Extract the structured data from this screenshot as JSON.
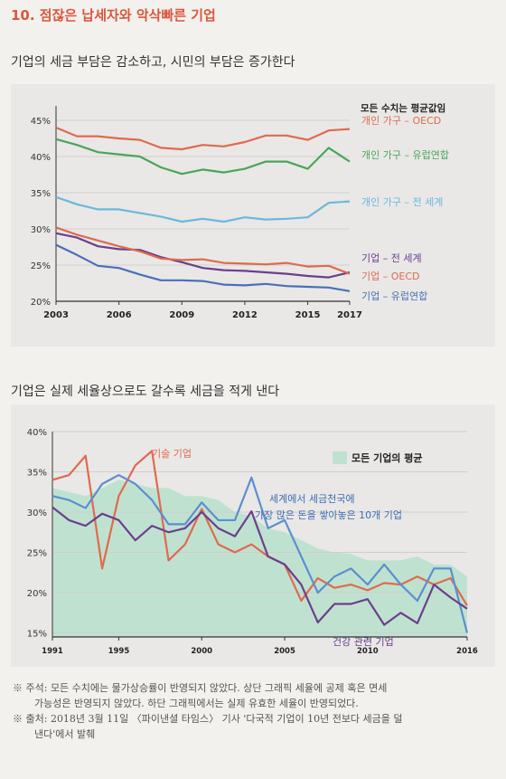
{
  "header": {
    "section_title": "10. 점잖은 납세자와 악삭빠른 기업"
  },
  "chart1": {
    "caption": "기업의 세금 부담은 감소하고, 시민의 부담은 증가한다",
    "note": "모든 수치는 평균값임"
  },
  "chart2": {
    "caption": "기업은 실제 세율상으로도 갈수록 세금을 적게 낸다",
    "legend_label": "모든 기업의 평균",
    "label_tech": "기술 기업",
    "label_cash": "세계에서 세금천국에",
    "label_cash2": "가장 많은 돈을 쌓아놓은 10개 기업",
    "label_health": "건강 관련 기업"
  },
  "notes": {
    "line1": "※ 주석: 모든 수치에는 물가상승률이 반영되지 않았다. 상단 그래픽 세율에 공제 혹은 면세",
    "line2": "가능성은 반영되지 않았다. 하단 그래픽에서는 실제 유효한 세율이 반영되었다.",
    "line3": "※ 출처: 2018년 3월 11일 〈파이낸셜 타임스〉 기사 '다국적 기업이 10년 전보다 세금을 덜",
    "line4": "낸다'에서 발췌"
  },
  "colors": {
    "red": "#e06a4e",
    "green": "#4aa55a",
    "light_blue": "#6bb8dc",
    "blue": "#4a6fb8",
    "purple": "#6b3f8c",
    "mint": "#bfe2d0",
    "accent": "#d9573b"
  },
  "chart_data": [
    {
      "type": "line",
      "title": "",
      "xlabel": "",
      "ylabel": "",
      "x": [
        2003,
        2004,
        2005,
        2006,
        2007,
        2008,
        2009,
        2010,
        2011,
        2012,
        2013,
        2014,
        2015,
        2016,
        2017
      ],
      "x_ticks": [
        2003,
        2006,
        2009,
        2012,
        2015,
        2017
      ],
      "y_ticks": [
        "20%",
        "25%",
        "30%",
        "35%",
        "40%",
        "45%"
      ],
      "ylim": [
        20,
        46
      ],
      "grid": true,
      "series": [
        {
          "name": "개인 가구 – OECD",
          "color": "#e06a4e",
          "values": [
            44.0,
            42.8,
            42.8,
            42.5,
            42.3,
            41.2,
            41.0,
            41.6,
            41.4,
            42.0,
            42.9,
            42.9,
            42.3,
            43.6,
            43.8
          ]
        },
        {
          "name": "개인 가구 – 유럽연합",
          "color": "#4aa55a",
          "values": [
            42.4,
            41.6,
            40.6,
            40.3,
            40.0,
            38.5,
            37.6,
            38.2,
            37.8,
            38.3,
            39.3,
            39.3,
            38.3,
            41.2,
            39.3
          ]
        },
        {
          "name": "개인 가구 – 전 세계",
          "color": "#6bb8dc",
          "values": [
            34.4,
            33.4,
            32.7,
            32.7,
            32.2,
            31.7,
            31.0,
            31.4,
            31.0,
            31.6,
            31.3,
            31.4,
            31.6,
            33.6,
            33.8
          ]
        },
        {
          "name": "기업 – 전 세계",
          "color": "#6b3f8c",
          "values": [
            29.4,
            28.8,
            27.6,
            27.2,
            27.1,
            26.1,
            25.4,
            24.6,
            24.3,
            24.2,
            24.0,
            23.8,
            23.5,
            23.3,
            24.0
          ]
        },
        {
          "name": "기업 – OECD",
          "color": "#e06a4e",
          "values": [
            30.2,
            29.2,
            28.4,
            27.6,
            26.9,
            25.9,
            25.7,
            25.8,
            25.3,
            25.2,
            25.1,
            25.3,
            24.8,
            24.9,
            23.8
          ]
        },
        {
          "name": "기업 – 유럽연합",
          "color": "#4a6fb8",
          "values": [
            27.8,
            26.4,
            24.9,
            24.6,
            23.7,
            22.9,
            22.9,
            22.8,
            22.3,
            22.2,
            22.4,
            22.1,
            22.0,
            21.9,
            21.4
          ]
        }
      ]
    },
    {
      "type": "line",
      "title": "",
      "xlabel": "",
      "ylabel": "",
      "x": [
        1991,
        1992,
        1993,
        1994,
        1995,
        1996,
        1997,
        1998,
        1999,
        2000,
        2001,
        2002,
        2003,
        2004,
        2005,
        2006,
        2007,
        2008,
        2009,
        2010,
        2011,
        2012,
        2013,
        2014,
        2015,
        2016
      ],
      "x_ticks": [
        1991,
        1995,
        2000,
        2005,
        2010,
        2016
      ],
      "y_ticks": [
        "15%",
        "20%",
        "25%",
        "30%",
        "35%",
        "40%"
      ],
      "ylim": [
        14.5,
        40
      ],
      "grid": true,
      "area": {
        "name": "모든 기업의 평균",
        "color": "#bfe2d0",
        "values": [
          33.0,
          32.5,
          32.0,
          33.0,
          34.0,
          33.5,
          33.0,
          33.0,
          32.0,
          32.0,
          31.5,
          30.0,
          29.5,
          28.0,
          27.5,
          26.5,
          25.5,
          25.0,
          24.8,
          24.0,
          24.0,
          24.0,
          24.5,
          23.5,
          23.5,
          22.0
        ]
      },
      "series": [
        {
          "name": "기술 기업",
          "color": "#e06a4e",
          "values": [
            34.0,
            34.6,
            37.0,
            23.0,
            32.0,
            35.8,
            37.6,
            24.0,
            26.0,
            30.4,
            26.0,
            25.0,
            26.0,
            24.5,
            23.5,
            19.0,
            21.8,
            20.6,
            21.0,
            20.3,
            21.2,
            21.0,
            22.0,
            21.0,
            21.8,
            18.4
          ]
        },
        {
          "name": "세계에서 세금천국에 가장 많은 돈을 쌓아놓은 10개 기업",
          "color": "#5b8fd0",
          "values": [
            32.0,
            31.5,
            30.5,
            33.5,
            34.6,
            33.5,
            31.5,
            28.5,
            28.5,
            31.2,
            29.0,
            29.0,
            34.3,
            28.0,
            29.0,
            24.5,
            20.0,
            22.0,
            23.0,
            21.0,
            23.5,
            21.0,
            19.0,
            23.0,
            23.0,
            15.0
          ]
        },
        {
          "name": "건강 관련 기업",
          "color": "#6b3f8c",
          "values": [
            30.6,
            29.0,
            28.3,
            29.8,
            29.0,
            26.5,
            28.3,
            27.5,
            28.0,
            30.0,
            28.0,
            27.0,
            30.1,
            24.5,
            23.5,
            21.0,
            16.3,
            18.6,
            18.6,
            19.2,
            16.0,
            17.5,
            16.2,
            21.0,
            19.4,
            18.0
          ]
        }
      ]
    }
  ]
}
